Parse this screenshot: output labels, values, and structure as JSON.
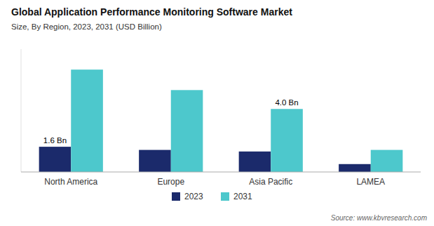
{
  "chart_data": {
    "type": "bar",
    "title": "Global Application Performance Monitoring Software Market",
    "subtitle": "Size, By Region, 2023, 2031 (USD Billion)",
    "source": "Source: www.kbvresearch.com",
    "categories": [
      "North America",
      "Europe",
      "Asia Pacific",
      "LAMEA"
    ],
    "series": [
      {
        "name": "2023",
        "color": "#1b2a6b",
        "values": [
          1.6,
          1.4,
          1.3,
          0.5
        ]
      },
      {
        "name": "2031",
        "color": "#4dc8cc",
        "values": [
          6.5,
          5.2,
          4.0,
          1.4
        ]
      }
    ],
    "annotations": [
      {
        "text": "1.6 Bn",
        "series": "2023",
        "category": "North America"
      },
      {
        "text": "4.0 Bn",
        "series": "2031",
        "category": "Asia Pacific"
      }
    ],
    "ylim": [
      0,
      7.8
    ],
    "tick_labels": "x",
    "grid": false,
    "legend": "bottom"
  }
}
